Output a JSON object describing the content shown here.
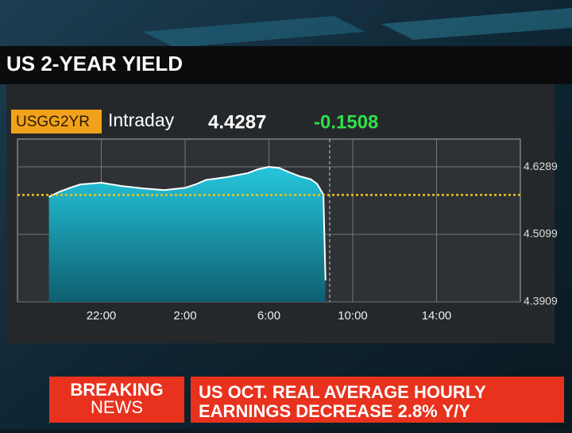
{
  "chart_data": {
    "type": "area",
    "title": "US 2-YEAR YIELD",
    "ticker": "USGG2YR",
    "period": "Intraday",
    "last": 4.4287,
    "change": -0.1508,
    "x": [
      1.5,
      2,
      2.5,
      3,
      4,
      5,
      6,
      7,
      8,
      8.5,
      9,
      10,
      11,
      11.5,
      12,
      12.5,
      13,
      13.5,
      14,
      14.3,
      14.6,
      14.7
    ],
    "values": [
      4.576,
      4.585,
      4.592,
      4.598,
      4.601,
      4.595,
      4.591,
      4.588,
      4.592,
      4.598,
      4.606,
      4.611,
      4.618,
      4.625,
      4.629,
      4.627,
      4.619,
      4.612,
      4.607,
      4.599,
      4.58,
      4.4287
    ],
    "color": "#1fb3cc",
    "xlim": [
      0,
      24
    ],
    "xticks": [
      {
        "value": 4,
        "label": "22:00"
      },
      {
        "value": 8,
        "label": "2:00"
      },
      {
        "value": 12,
        "label": "6:00"
      },
      {
        "value": 16,
        "label": "10:00"
      },
      {
        "value": 20,
        "label": "14:00"
      }
    ],
    "ylim": [
      4.3909,
      4.678
    ],
    "yticks": [
      4.3909,
      4.5099,
      4.6289
    ],
    "reference_line": 4.5795,
    "current_x": 14.9,
    "grid": true
  },
  "banner": {
    "label_top": "BREAKING",
    "label_bottom": "NEWS",
    "line1": "US OCT. REAL AVERAGE HOURLY",
    "line2": "EARNINGS DECREASE 2.8% Y/Y"
  }
}
